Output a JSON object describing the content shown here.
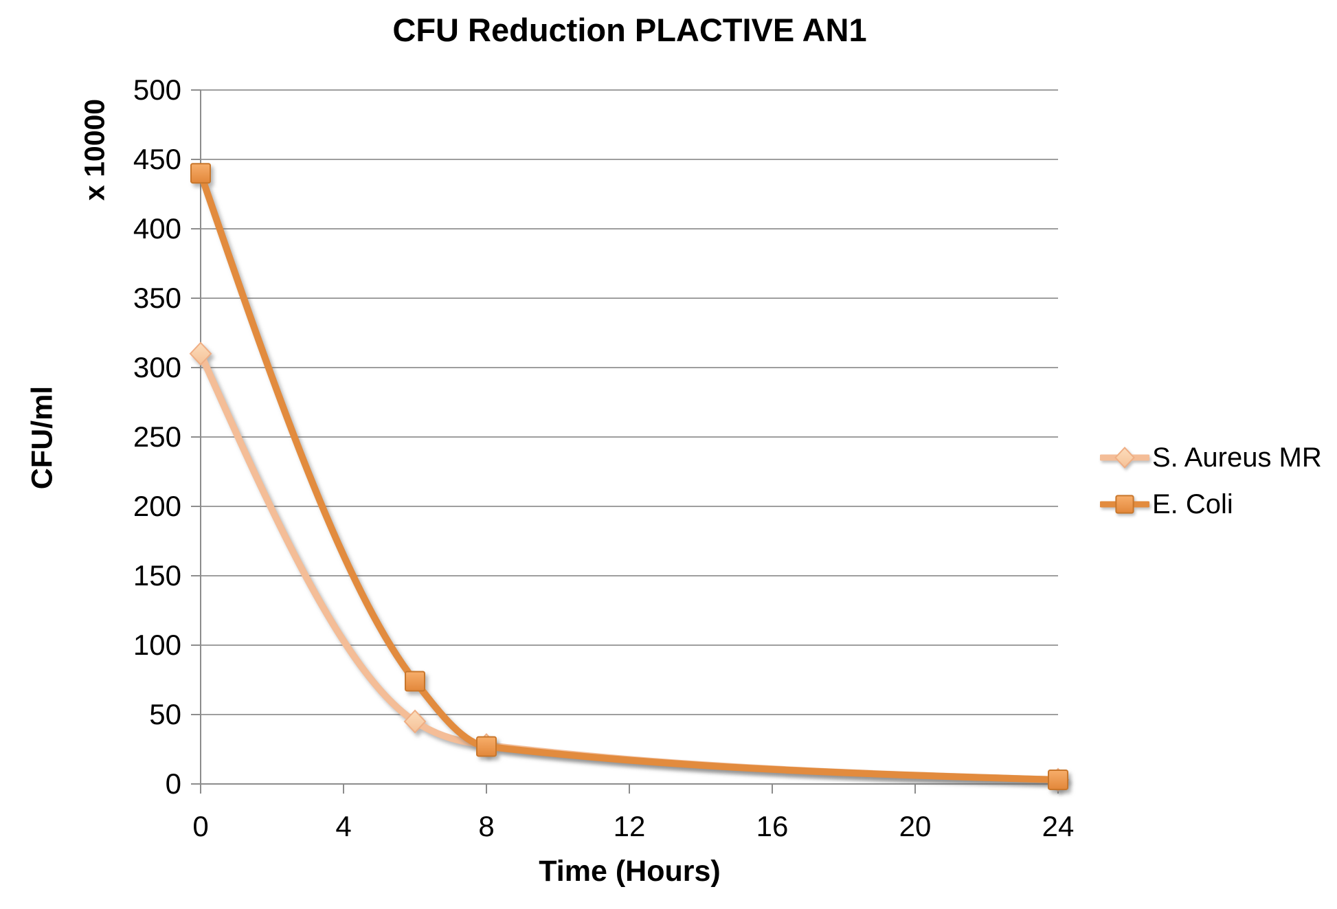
{
  "chart_data": {
    "type": "line",
    "title": "CFU Reduction PLACTIVE AN1",
    "xlabel": "Time (Hours)",
    "ylabel": "CFU/ml",
    "y_unit_label": "x 10000",
    "x": [
      0,
      6,
      8,
      24
    ],
    "series": [
      {
        "name": "S. Aureus MR",
        "marker": "diamond",
        "values": [
          310,
          45,
          28,
          3
        ],
        "line_color": "#F4BD97",
        "marker_fill_top": "#FCDDBC",
        "marker_fill_bottom": "#F5C197",
        "marker_stroke": "#EFAE84"
      },
      {
        "name": "E. Coli",
        "marker": "square",
        "values": [
          440,
          74,
          27,
          3
        ],
        "line_color": "#E28B3E",
        "marker_fill_top": "#F7AE6B",
        "marker_fill_bottom": "#E2873A",
        "marker_stroke": "#C8762B"
      }
    ],
    "xlim": [
      0,
      24
    ],
    "ylim": [
      0,
      500
    ],
    "x_ticks": [
      0,
      4,
      8,
      12,
      16,
      20,
      24
    ],
    "y_ticks": [
      0,
      50,
      100,
      150,
      200,
      250,
      300,
      350,
      400,
      450,
      500
    ],
    "grid": "horizontal",
    "legend_position": "right",
    "axis_color": "#8C8C8C",
    "grid_color": "#9E9E9E",
    "text_color": "#000000"
  }
}
